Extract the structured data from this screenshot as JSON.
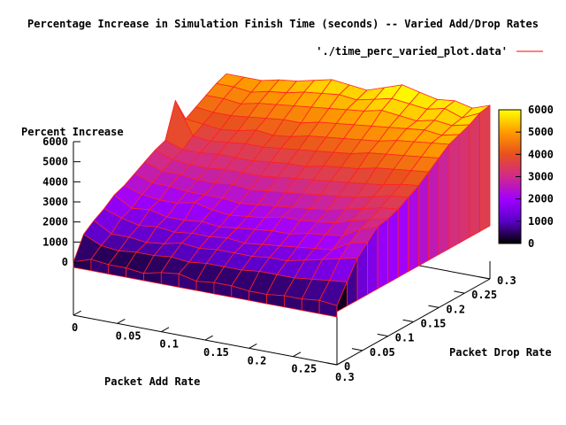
{
  "chart_data": {
    "type": "surface",
    "title": "Percentage Increase in Simulation Finish Time (seconds) -- Varied Add/Drop Rates",
    "xlabel": "Packet Add Rate",
    "ylabel": "Packet Drop Rate",
    "zlabel": "Percent Increase",
    "series": [
      {
        "name": "'./time_perc_varied_plot.data'",
        "color": "#ff0000"
      }
    ],
    "xlim": [
      0,
      0.3
    ],
    "ylim": [
      0,
      0.3
    ],
    "zlim": [
      0,
      6000
    ],
    "x_ticks": [
      "0",
      "0.05",
      "0.1",
      "0.15",
      "0.2",
      "0.25",
      "0.3"
    ],
    "y_ticks": [
      "0",
      "0.05",
      "0.1",
      "0.15",
      "0.2",
      "0.25",
      "0.3"
    ],
    "z_ticks": [
      "0",
      "1000",
      "2000",
      "3000",
      "4000",
      "5000",
      "6000"
    ],
    "colorbar": {
      "ticks": [
        "0",
        "1000",
        "2000",
        "3000",
        "4000",
        "5000",
        "6000"
      ],
      "palette": [
        "#000000",
        "#5a00c8",
        "#a000ff",
        "#d02a8a",
        "#e8501e",
        "#ff9a00",
        "#ffff00"
      ]
    },
    "x": [
      0,
      0.02,
      0.04,
      0.06,
      0.08,
      0.1,
      0.12,
      0.14,
      0.16,
      0.18,
      0.2,
      0.22,
      0.24,
      0.26,
      0.28,
      0.3
    ],
    "y": [
      0,
      0.02,
      0.04,
      0.06,
      0.08,
      0.1,
      0.12,
      0.14,
      0.16,
      0.18,
      0.2,
      0.22,
      0.24,
      0.26,
      0.28,
      0.3
    ],
    "z": [
      [
        0,
        300,
        200,
        200,
        100,
        300,
        400,
        200,
        300,
        300,
        200,
        200,
        300,
        300,
        400,
        300
      ],
      [
        1100,
        700,
        600,
        700,
        700,
        800,
        700,
        800,
        800,
        800,
        900,
        900,
        900,
        1000,
        1100,
        1200
      ],
      [
        1500,
        1000,
        1000,
        900,
        1000,
        1200,
        1100,
        1200,
        1200,
        1200,
        1300,
        1300,
        1500,
        1700,
        1900,
        2100
      ],
      [
        1800,
        1500,
        1300,
        1400,
        1300,
        1400,
        1400,
        1500,
        1400,
        1500,
        1600,
        1700,
        1800,
        1900,
        2400,
        2600
      ],
      [
        2200,
        1700,
        1800,
        1600,
        1600,
        1700,
        1600,
        1700,
        1800,
        1900,
        1900,
        2100,
        2200,
        2300,
        2800,
        3100
      ],
      [
        2400,
        2100,
        2000,
        2000,
        2200,
        2000,
        1900,
        2000,
        2100,
        2300,
        2300,
        2400,
        2500,
        2800,
        3000,
        3200
      ],
      [
        2700,
        2400,
        2400,
        2300,
        2300,
        2300,
        2200,
        2300,
        2400,
        2500,
        2600,
        2700,
        2900,
        3100,
        3300,
        3400
      ],
      [
        3000,
        2700,
        2700,
        2600,
        2600,
        2700,
        2600,
        2700,
        2800,
        2900,
        3000,
        3100,
        3200,
        3400,
        3600,
        3700
      ],
      [
        3300,
        3000,
        2900,
        2900,
        3000,
        3000,
        3000,
        3100,
        3200,
        3300,
        3400,
        3500,
        3600,
        3700,
        3900,
        4000
      ],
      [
        3500,
        3200,
        3200,
        3300,
        3300,
        3300,
        3400,
        3500,
        3500,
        3700,
        3800,
        3900,
        4100,
        4200,
        4300,
        4400
      ],
      [
        5200,
        3600,
        3500,
        3600,
        3700,
        3700,
        3800,
        3900,
        4000,
        4100,
        4200,
        4400,
        4500,
        4600,
        4700,
        4800
      ],
      [
        4000,
        3900,
        3800,
        3900,
        4100,
        4000,
        4100,
        4300,
        4400,
        4500,
        4600,
        4700,
        4900,
        5000,
        5100,
        5200
      ],
      [
        4300,
        4200,
        4200,
        4300,
        4400,
        4500,
        4500,
        4700,
        4800,
        4900,
        5000,
        5100,
        5200,
        5300,
        5200,
        5400
      ],
      [
        4600,
        4600,
        4500,
        4700,
        4800,
        4900,
        5000,
        5100,
        5200,
        5300,
        5500,
        5400,
        5300,
        5500,
        5400,
        5600
      ],
      [
        4900,
        4900,
        4800,
        5000,
        5100,
        5300,
        5400,
        5500,
        5400,
        5600,
        5800,
        5700,
        5600,
        5800,
        5500,
        5900
      ],
      [
        5100,
        5100,
        5100,
        5300,
        5400,
        5600,
        5800,
        5700,
        5600,
        5900,
        6200,
        6000,
        5800,
        5900,
        5700,
        6000
      ]
    ]
  }
}
